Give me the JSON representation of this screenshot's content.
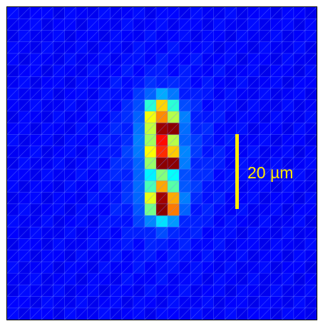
{
  "image": {
    "description_type": "false-color fluorescence intensity map",
    "colormap": "jet",
    "background_color": "#0a1fd8",
    "grid_line_color": "#6f86ff",
    "grid_columns": 27,
    "grid_rows": 27,
    "bright_spots": [
      {
        "col": 13,
        "row": 9,
        "color": "#ff8c00"
      },
      {
        "col": 14,
        "row": 9,
        "color": "#b5ff4a"
      },
      {
        "col": 13,
        "row": 10,
        "color": "#9a0000"
      },
      {
        "col": 14,
        "row": 10,
        "color": "#8b0000"
      },
      {
        "col": 13,
        "row": 12,
        "color": "#ff2a00"
      },
      {
        "col": 14,
        "row": 12,
        "color": "#ffcc00"
      },
      {
        "col": 13,
        "row": 13,
        "color": "#8b0000"
      },
      {
        "col": 14,
        "row": 13,
        "color": "#8b0000"
      },
      {
        "col": 13,
        "row": 16,
        "color": "#a00000"
      },
      {
        "col": 14,
        "row": 16,
        "color": "#ffaa00"
      },
      {
        "col": 13,
        "row": 17,
        "color": "#8b0000"
      },
      {
        "col": 14,
        "row": 17,
        "color": "#ff7a00"
      }
    ]
  },
  "scale_bar": {
    "label": "20 µm",
    "color": "#ffea00"
  }
}
